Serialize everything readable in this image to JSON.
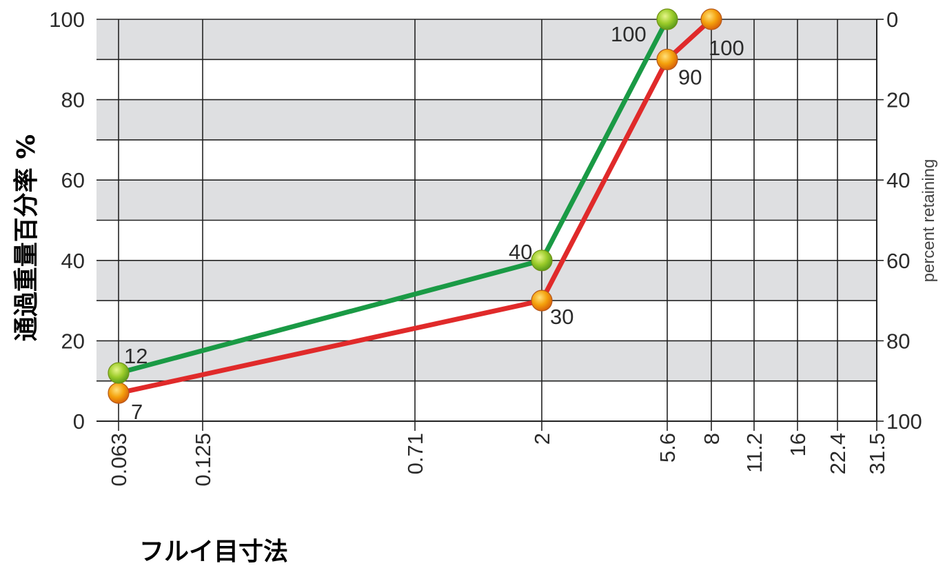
{
  "chart_data": {
    "type": "line",
    "x_ticks": [
      "0.063",
      "0.125",
      "0.71",
      "2",
      "5.6",
      "8",
      "11.2",
      "16",
      "22.4",
      "31.5"
    ],
    "x_scale": "log",
    "ylabel": "通過重量百分率 %",
    "y2label": "percent retaining",
    "xlabel": "フルイ目寸法",
    "ylim": [
      0,
      100
    ],
    "y_ticks": [
      "0",
      "20",
      "40",
      "60",
      "80",
      "100"
    ],
    "y2_ticks": [
      "100",
      "80",
      "60",
      "40",
      "20",
      "0"
    ],
    "grid": true,
    "series": [
      {
        "color": "#1a9a45",
        "marker_color": "#9ccc2a",
        "x": [
          0.063,
          2,
          5.6
        ],
        "y": [
          12,
          40,
          100
        ],
        "labels": [
          "12",
          "40",
          "100"
        ]
      },
      {
        "color": "#e02a2a",
        "marker_color": "#f4a10c",
        "x": [
          0.063,
          2,
          5.6,
          8
        ],
        "y": [
          7,
          30,
          90,
          100
        ],
        "labels": [
          "7",
          "30",
          "90",
          "100"
        ]
      }
    ]
  }
}
